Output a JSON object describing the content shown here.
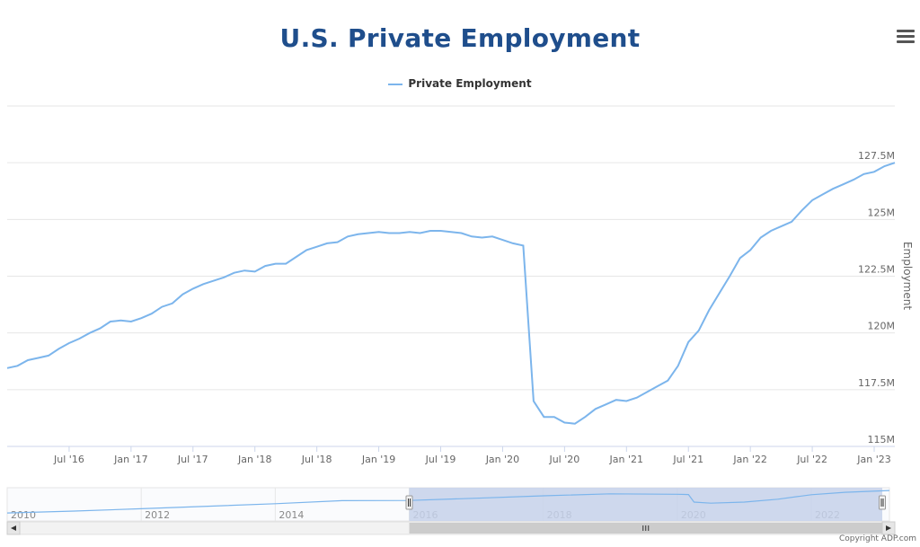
{
  "title": "U.S. Private Employment",
  "menu_icon": "hamburger-menu-icon",
  "legend": {
    "label": "Private Employment",
    "color": "#7cb5ec"
  },
  "copyright": "Copyright ADP.com",
  "colors": {
    "line": "#7cb5ec",
    "title": "#1f4e8c",
    "grid": "#e6e6e6",
    "navigator_mask": "#c6d1ea"
  },
  "chart_data": {
    "type": "line",
    "title": "U.S. Private Employment",
    "xlabel": "",
    "ylabel": "Employment",
    "ylim": [
      115,
      130
    ],
    "y_ticks": [
      {
        "v": 115,
        "label": "115M"
      },
      {
        "v": 117.5,
        "label": "117.5M"
      },
      {
        "v": 120,
        "label": "120M"
      },
      {
        "v": 122.5,
        "label": "122.5M"
      },
      {
        "v": 125,
        "label": "125M"
      },
      {
        "v": 127.5,
        "label": "127.5M"
      }
    ],
    "x_ticks": [
      {
        "date": "2016-07",
        "label": "Jul '16"
      },
      {
        "date": "2017-01",
        "label": "Jan '17"
      },
      {
        "date": "2017-07",
        "label": "Jul '17"
      },
      {
        "date": "2018-01",
        "label": "Jan '18"
      },
      {
        "date": "2018-07",
        "label": "Jul '18"
      },
      {
        "date": "2019-01",
        "label": "Jan '19"
      },
      {
        "date": "2019-07",
        "label": "Jul '19"
      },
      {
        "date": "2020-01",
        "label": "Jan '20"
      },
      {
        "date": "2020-07",
        "label": "Jul '20"
      },
      {
        "date": "2021-01",
        "label": "Jan '21"
      },
      {
        "date": "2021-07",
        "label": "Jul '21"
      },
      {
        "date": "2022-01",
        "label": "Jan '22"
      },
      {
        "date": "2022-07",
        "label": "Jul '22"
      },
      {
        "date": "2023-01",
        "label": "Jan '23"
      }
    ],
    "grid": true,
    "legend_position": "top-center",
    "series": [
      {
        "name": "Private Employment",
        "units": "millions",
        "points": [
          [
            "2016-01",
            118.45
          ],
          [
            "2016-02",
            118.55
          ],
          [
            "2016-03",
            118.8
          ],
          [
            "2016-04",
            118.9
          ],
          [
            "2016-05",
            119.0
          ],
          [
            "2016-06",
            119.3
          ],
          [
            "2016-07",
            119.55
          ],
          [
            "2016-08",
            119.75
          ],
          [
            "2016-09",
            120.0
          ],
          [
            "2016-10",
            120.2
          ],
          [
            "2016-11",
            120.5
          ],
          [
            "2016-12",
            120.55
          ],
          [
            "2017-01",
            120.5
          ],
          [
            "2017-02",
            120.65
          ],
          [
            "2017-03",
            120.85
          ],
          [
            "2017-04",
            121.15
          ],
          [
            "2017-05",
            121.3
          ],
          [
            "2017-06",
            121.7
          ],
          [
            "2017-07",
            121.95
          ],
          [
            "2017-08",
            122.15
          ],
          [
            "2017-09",
            122.3
          ],
          [
            "2017-10",
            122.45
          ],
          [
            "2017-11",
            122.65
          ],
          [
            "2017-12",
            122.75
          ],
          [
            "2018-01",
            122.7
          ],
          [
            "2018-02",
            122.95
          ],
          [
            "2018-03",
            123.05
          ],
          [
            "2018-04",
            123.05
          ],
          [
            "2018-05",
            123.35
          ],
          [
            "2018-06",
            123.65
          ],
          [
            "2018-07",
            123.8
          ],
          [
            "2018-08",
            123.95
          ],
          [
            "2018-09",
            124.0
          ],
          [
            "2018-10",
            124.25
          ],
          [
            "2018-11",
            124.35
          ],
          [
            "2018-12",
            124.4
          ],
          [
            "2019-01",
            124.45
          ],
          [
            "2019-02",
            124.4
          ],
          [
            "2019-03",
            124.4
          ],
          [
            "2019-04",
            124.45
          ],
          [
            "2019-05",
            124.4
          ],
          [
            "2019-06",
            124.5
          ],
          [
            "2019-07",
            124.5
          ],
          [
            "2019-08",
            124.45
          ],
          [
            "2019-09",
            124.4
          ],
          [
            "2019-10",
            124.25
          ],
          [
            "2019-11",
            124.2
          ],
          [
            "2019-12",
            124.25
          ],
          [
            "2020-01",
            124.1
          ],
          [
            "2020-02",
            123.95
          ],
          [
            "2020-03",
            123.85
          ],
          [
            "2020-04",
            117.0
          ],
          [
            "2020-05",
            116.3
          ],
          [
            "2020-06",
            116.3
          ],
          [
            "2020-07",
            116.05
          ],
          [
            "2020-08",
            116.0
          ],
          [
            "2020-09",
            116.3
          ],
          [
            "2020-10",
            116.65
          ],
          [
            "2020-11",
            116.85
          ],
          [
            "2020-12",
            117.05
          ],
          [
            "2021-01",
            117.0
          ],
          [
            "2021-02",
            117.15
          ],
          [
            "2021-03",
            117.4
          ],
          [
            "2021-04",
            117.65
          ],
          [
            "2021-05",
            117.9
          ],
          [
            "2021-06",
            118.55
          ],
          [
            "2021-07",
            119.6
          ],
          [
            "2021-08",
            120.1
          ],
          [
            "2021-09",
            121.0
          ],
          [
            "2021-10",
            121.75
          ],
          [
            "2021-11",
            122.5
          ],
          [
            "2021-12",
            123.3
          ],
          [
            "2022-01",
            123.65
          ],
          [
            "2022-02",
            124.2
          ],
          [
            "2022-03",
            124.5
          ],
          [
            "2022-04",
            124.7
          ],
          [
            "2022-05",
            124.9
          ],
          [
            "2022-06",
            125.4
          ],
          [
            "2022-07",
            125.85
          ],
          [
            "2022-08",
            126.1
          ],
          [
            "2022-09",
            126.35
          ],
          [
            "2022-10",
            126.55
          ],
          [
            "2022-11",
            126.75
          ],
          [
            "2022-12",
            127.0
          ],
          [
            "2023-01",
            127.1
          ],
          [
            "2023-02",
            127.35
          ],
          [
            "2023-03",
            127.5
          ]
        ]
      }
    ],
    "navigator": {
      "year_labels": [
        "2010",
        "2012",
        "2014",
        "2016",
        "2018",
        "2020",
        "2022"
      ],
      "year_dates": [
        "2010-01",
        "2012-01",
        "2014-01",
        "2016-01",
        "2018-01",
        "2020-01",
        "2022-01"
      ],
      "range_start": "2010-01",
      "range_end": "2023-03",
      "selected_start": "2016-01",
      "selected_end": "2023-03",
      "points": [
        [
          "2010-01",
          107.2
        ],
        [
          "2011-01",
          108.9
        ],
        [
          "2012-01",
          111.0
        ],
        [
          "2013-01",
          113.3
        ],
        [
          "2014-01",
          115.6
        ],
        [
          "2015-01",
          118.3
        ],
        [
          "2016-01",
          118.45
        ],
        [
          "2017-01",
          120.5
        ],
        [
          "2018-01",
          122.7
        ],
        [
          "2019-01",
          124.45
        ],
        [
          "2020-01",
          124.1
        ],
        [
          "2020-03",
          123.85
        ],
        [
          "2020-04",
          117.0
        ],
        [
          "2020-07",
          116.05
        ],
        [
          "2021-01",
          117.0
        ],
        [
          "2021-07",
          119.6
        ],
        [
          "2022-01",
          123.65
        ],
        [
          "2022-07",
          125.85
        ],
        [
          "2023-03",
          127.5
        ]
      ],
      "scroll_left_icon": "arrow-left-icon",
      "scroll_right_icon": "arrow-right-icon",
      "scroll_grip_icon": "grip-icon"
    }
  }
}
